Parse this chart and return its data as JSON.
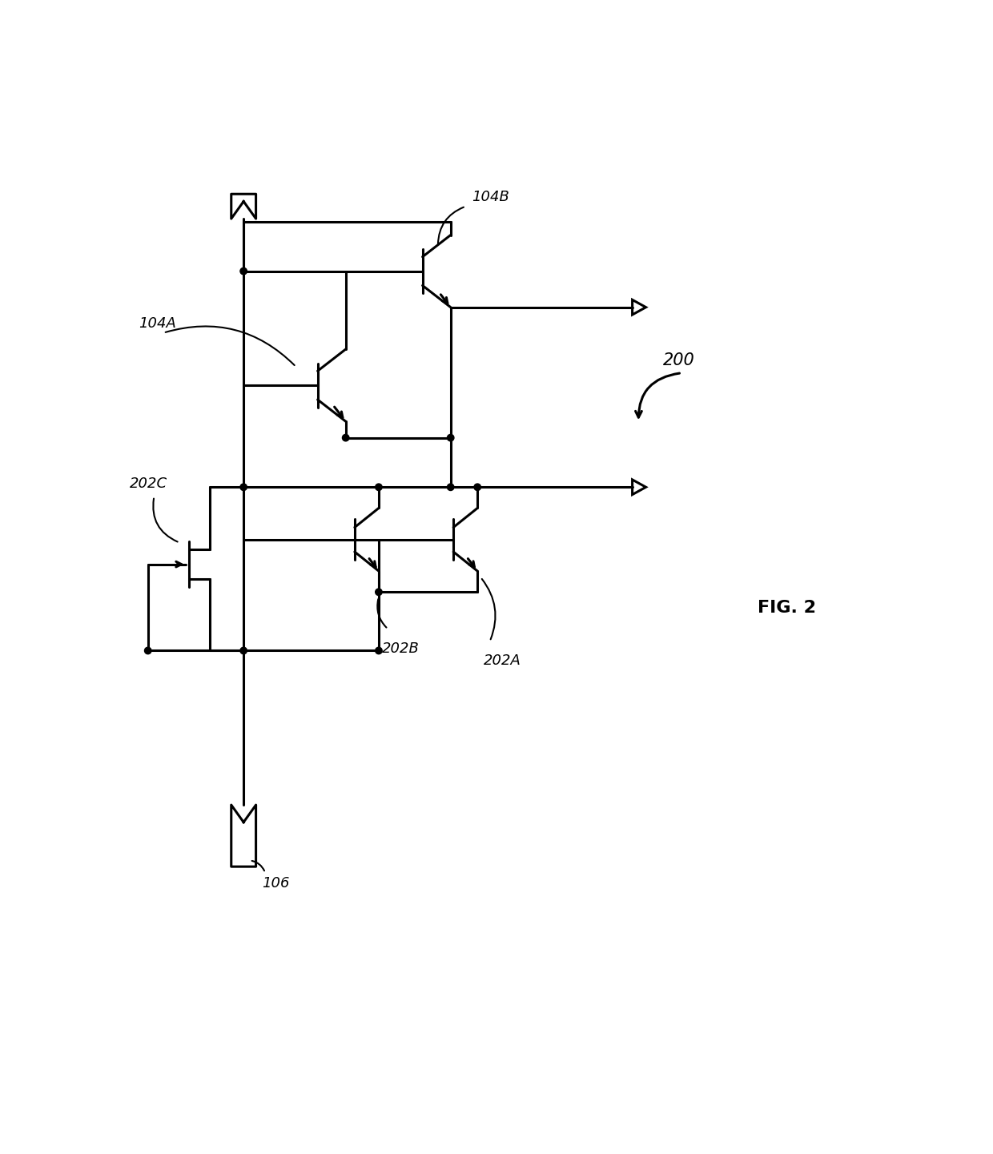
{
  "bg_color": "#ffffff",
  "line_color": "#000000",
  "lw": 2.2,
  "dot_r": 0.55,
  "fig_width": 12.4,
  "fig_height": 14.41,
  "title": "FIG. 2",
  "label_200": "200",
  "label_104A": "104A",
  "label_104B": "104B",
  "label_202A": "202A",
  "label_202B": "202B",
  "label_202C": "202C",
  "label_106": "106",
  "fs_label": 13,
  "fs_title": 16
}
